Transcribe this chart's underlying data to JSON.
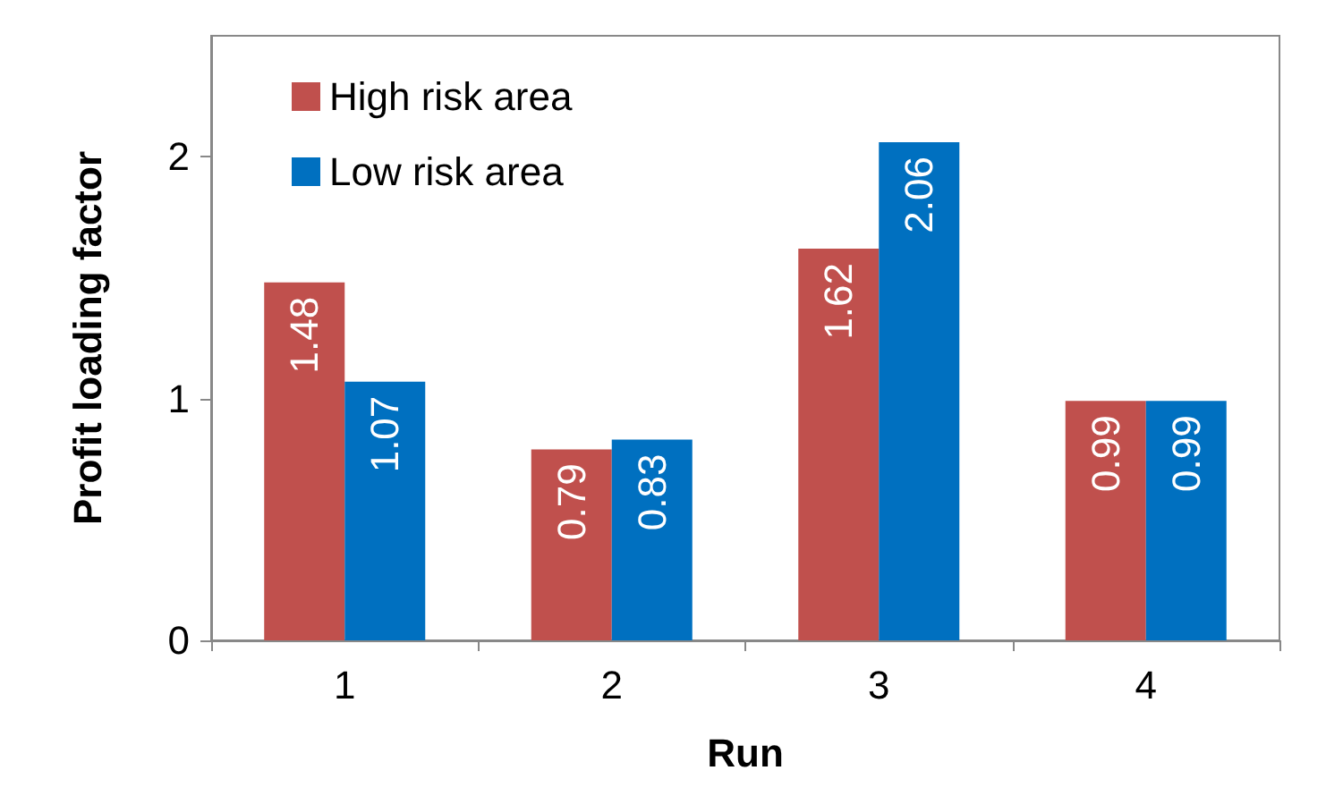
{
  "chart_data": {
    "type": "bar",
    "xlabel": "Run",
    "ylabel": "Profit loading factor",
    "categories": [
      "1",
      "2",
      "3",
      "4"
    ],
    "series": [
      {
        "name": "High risk area",
        "color": "#c0504d",
        "values": [
          1.48,
          0.79,
          1.62,
          0.99
        ]
      },
      {
        "name": "Low risk area",
        "color": "#0070c0",
        "values": [
          1.07,
          0.83,
          2.06,
          0.99
        ]
      }
    ],
    "ylim": [
      0,
      2.5
    ],
    "yticks": [
      0,
      1,
      2
    ],
    "grid": false,
    "legend": "top left",
    "data_labels": true
  }
}
